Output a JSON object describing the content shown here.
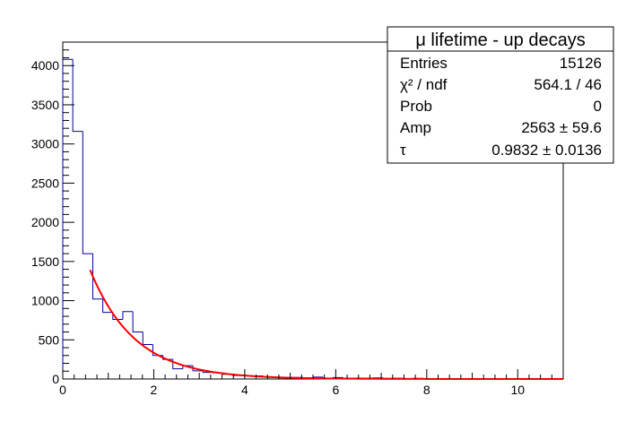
{
  "stats_box": {
    "title": "μ lifetime - up decays",
    "rows": [
      {
        "label": "Entries",
        "value": "15126"
      },
      {
        "label": "χ² / ndf",
        "value": "564.1 / 46"
      },
      {
        "label": "Prob",
        "value": "0"
      },
      {
        "label": "Amp",
        "value": "2563 ± 59.6"
      },
      {
        "label": "τ",
        "value": "0.9832 ± 0.0136"
      }
    ]
  },
  "colors": {
    "histogram": "#000099",
    "fit": "#ff0000",
    "axis": "#000000"
  },
  "chart_data": {
    "type": "histogram",
    "title": "",
    "xlabel": "",
    "ylabel": "",
    "xlim": [
      0,
      11
    ],
    "ylim": [
      0,
      4300
    ],
    "x_ticks": [
      0,
      2,
      4,
      6,
      8,
      10
    ],
    "y_ticks": [
      0,
      500,
      1000,
      1500,
      2000,
      2500,
      3000,
      3500,
      4000
    ],
    "bin_edges": [
      0,
      0.22,
      0.44,
      0.66,
      0.88,
      1.1,
      1.32,
      1.54,
      1.76,
      1.98,
      2.2,
      2.42,
      2.64,
      2.86,
      3.08,
      3.3,
      3.52,
      3.74,
      3.96,
      4.18,
      4.4,
      4.62,
      4.84,
      5.06,
      5.28,
      5.5,
      5.72,
      5.94,
      6.16,
      6.38,
      6.6,
      6.82,
      7.04,
      7.26,
      7.48,
      7.7,
      7.92,
      8.14,
      8.36,
      8.58,
      8.8,
      9.02,
      9.24,
      9.46,
      9.68,
      9.9,
      10.12,
      10.34,
      10.56,
      10.78,
      11
    ],
    "counts": [
      4080,
      3160,
      1600,
      1020,
      850,
      760,
      860,
      600,
      440,
      300,
      250,
      130,
      170,
      105,
      85,
      80,
      60,
      45,
      42,
      40,
      28,
      22,
      18,
      20,
      14,
      24,
      12,
      18,
      10,
      12,
      10,
      14,
      8,
      10,
      6,
      8,
      6,
      5,
      5,
      4,
      4,
      3,
      3,
      3,
      2,
      2,
      2,
      2,
      2,
      2
    ],
    "fit": {
      "function": "Amp*exp(-x/tau)",
      "range": [
        0.6,
        11
      ],
      "amp": 2563,
      "tau": 0.9832
    },
    "legend_position": "top-right"
  }
}
